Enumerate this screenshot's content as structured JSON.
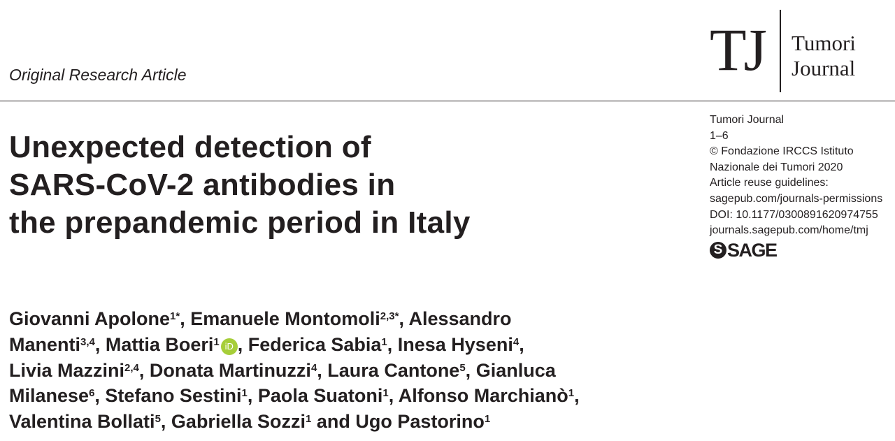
{
  "header": {
    "article_type": "Original Research Article",
    "logo": {
      "mark": "TJ",
      "name_line1": "Tumori",
      "name_line2": "Journal"
    }
  },
  "title_lines": [
    "Unexpected detection of",
    "SARS-CoV-2 antibodies in",
    "the prepandemic period in Italy"
  ],
  "info": {
    "journal": "Tumori Journal",
    "pages": "1–6",
    "copyright_line1": "© Fondazione IRCCS Istituto",
    "copyright_line2": "Nazionale dei Tumori 2020",
    "reuse_label": "Article reuse guidelines:",
    "reuse_link": "sagepub.com/journals-permissions",
    "doi": "DOI: 10.1177/0300891620974755",
    "home_link": "journals.sagepub.com/home/tmj",
    "publisher_logo": {
      "icon": "S",
      "text": "SAGE"
    }
  },
  "authors": [
    {
      "name": "Giovanni Apolone",
      "sup": "1*"
    },
    {
      "name": "Emanuele Montomoli",
      "sup": "2,3*"
    },
    {
      "name": "Alessandro Manenti",
      "name_part1": "Alessandro",
      "name_part2": "Manenti",
      "sup": "3,4"
    },
    {
      "name": "Mattia Boeri",
      "sup": "1",
      "orcid": "iD"
    },
    {
      "name": "Federica Sabia",
      "sup": "1"
    },
    {
      "name": "Inesa Hyseni",
      "sup": "4"
    },
    {
      "name": "Livia Mazzini",
      "sup": "2,4"
    },
    {
      "name": "Donata Martinuzzi",
      "sup": "4"
    },
    {
      "name": "Laura Cantone",
      "sup": "5"
    },
    {
      "name": "Gianluca Milanese",
      "name_part1": "Gianluca",
      "name_part2": "Milanese",
      "sup": "6"
    },
    {
      "name": "Stefano Sestini",
      "sup": "1"
    },
    {
      "name": "Paola Suatoni",
      "sup": "1"
    },
    {
      "name": "Alfonso Marchianò",
      "sup": "1"
    },
    {
      "name": "Valentina Bollati",
      "sup": "5"
    },
    {
      "name": "Gabriella Sozzi",
      "sup": "1"
    },
    {
      "name": "Ugo Pastorino",
      "sup": "1"
    }
  ],
  "separators": {
    "comma": ", ",
    "and": " and "
  },
  "colors": {
    "text": "#231f20",
    "orcid": "#a6ce39"
  }
}
